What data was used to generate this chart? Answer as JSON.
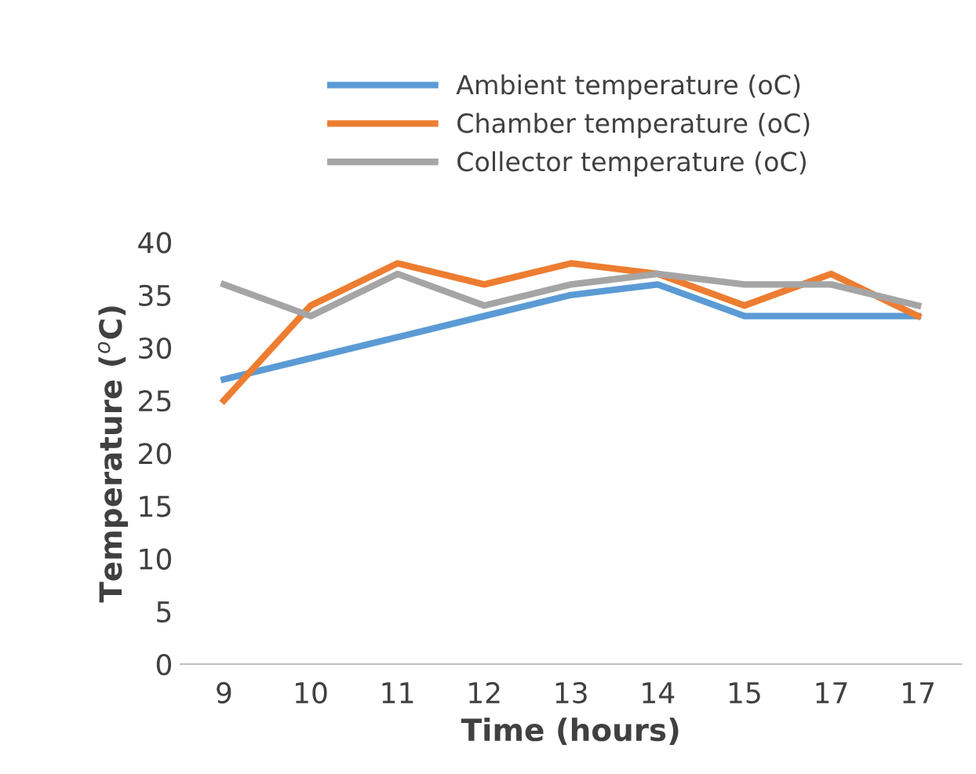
{
  "chart_data": {
    "type": "line",
    "xlabel": "Time (hours)",
    "ylabel": "Temperature ($^{o}$C)",
    "categories": [
      "9",
      "10",
      "11",
      "12",
      "13",
      "14",
      "15",
      "17",
      "17"
    ],
    "series": [
      {
        "name": "Ambient temperature (oC)",
        "color": "#5b9bd5",
        "values": [
          27,
          29,
          31,
          33,
          35,
          36,
          33,
          33,
          33
        ]
      },
      {
        "name": "Chamber temperature (oC)",
        "color": "#ed7d31",
        "values": [
          25,
          34,
          38,
          36,
          38,
          37,
          34,
          37,
          33
        ]
      },
      {
        "name": "Collector temperature (oC)",
        "color": "#a5a5a5",
        "values": [
          36,
          33,
          37,
          34,
          36,
          37,
          36,
          36,
          34
        ]
      }
    ],
    "ylim": [
      0,
      40
    ],
    "yticks": [
      0,
      5,
      10,
      15,
      20,
      25,
      30,
      35,
      40
    ],
    "grid": false,
    "legend": "top",
    "marker": "none",
    "line_style": "solid"
  }
}
